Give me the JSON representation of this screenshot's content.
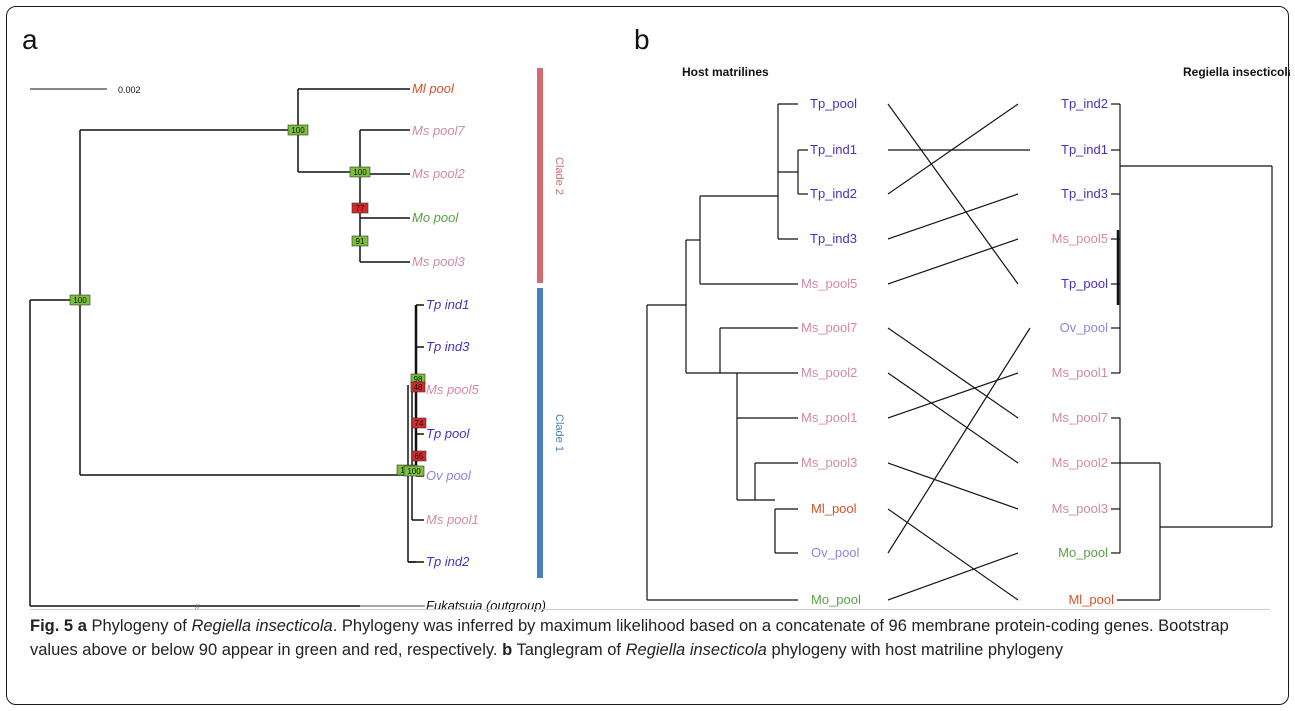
{
  "panel_a": {
    "letter": "a",
    "scale_label": "0.002",
    "tips": [
      {
        "label": "Ml pool",
        "color": "#d8522b"
      },
      {
        "label": "Ms pool7",
        "color": "#d58aa7"
      },
      {
        "label": "Ms pool2",
        "color": "#d58aa7"
      },
      {
        "label": "Mo pool",
        "color": "#5aa14a"
      },
      {
        "label": "Ms pool3",
        "color": "#d58aa7"
      },
      {
        "label": "Tp ind1",
        "color": "#4b2fbf"
      },
      {
        "label": "Tp ind3",
        "color": "#4b2fbf"
      },
      {
        "label": "Ms pool5",
        "color": "#d58aa7"
      },
      {
        "label": "Tp pool",
        "color": "#4b2fbf"
      },
      {
        "label": "Ov pool",
        "color": "#8f86d8"
      },
      {
        "label": "Ms pool1",
        "color": "#d58aa7"
      },
      {
        "label": "Tp ind2",
        "color": "#4b2fbf"
      },
      {
        "label": "Fukatsuia (outgroup)",
        "color": "#111111"
      }
    ],
    "bootstraps": [
      "100",
      "100",
      "100",
      "77",
      "91",
      "100",
      "98",
      "48",
      "74",
      "65",
      "100"
    ],
    "clades": [
      {
        "label": "Clade 2",
        "color": "#d46a6f"
      },
      {
        "label": "Clade 1",
        "color": "#4a80b5"
      }
    ]
  },
  "panel_b": {
    "letter": "b",
    "left_title": "Host matrilines",
    "right_title": "Regiella insecticola",
    "left_tips": [
      {
        "label": "Tp_pool",
        "color": "#4b2fbf"
      },
      {
        "label": "Tp_ind1",
        "color": "#4b2fbf"
      },
      {
        "label": "Tp_ind2",
        "color": "#4b2fbf"
      },
      {
        "label": "Tp_ind3",
        "color": "#4b2fbf"
      },
      {
        "label": "Ms_pool5",
        "color": "#d58aa7"
      },
      {
        "label": "Ms_pool7",
        "color": "#d58aa7"
      },
      {
        "label": "Ms_pool2",
        "color": "#d58aa7"
      },
      {
        "label": "Ms_pool1",
        "color": "#d58aa7"
      },
      {
        "label": "Ms_pool3",
        "color": "#d58aa7"
      },
      {
        "label": "Ml_pool",
        "color": "#d8522b"
      },
      {
        "label": "Ov_pool",
        "color": "#8f86d8"
      },
      {
        "label": "Mo_pool",
        "color": "#5aa14a"
      }
    ],
    "right_tips": [
      {
        "label": "Tp_ind2",
        "color": "#4b2fbf"
      },
      {
        "label": "Tp_ind1",
        "color": "#4b2fbf"
      },
      {
        "label": "Tp_ind3",
        "color": "#4b2fbf"
      },
      {
        "label": "Ms_pool5",
        "color": "#d58aa7"
      },
      {
        "label": "Tp_pool",
        "color": "#4b2fbf"
      },
      {
        "label": "Ov_pool",
        "color": "#8f86d8"
      },
      {
        "label": "Ms_pool1",
        "color": "#d58aa7"
      },
      {
        "label": "Ms_pool7",
        "color": "#d58aa7"
      },
      {
        "label": "Ms_pool2",
        "color": "#d58aa7"
      },
      {
        "label": "Ms_pool3",
        "color": "#d58aa7"
      },
      {
        "label": "Mo_pool",
        "color": "#5aa14a"
      },
      {
        "label": "Ml_pool",
        "color": "#d8522b"
      }
    ]
  },
  "caption": {
    "fig": "Fig. 5",
    "a": "a",
    "t1": " Phylogeny of ",
    "sp1": "Regiella insecticola",
    "t2": ". Phylogeny was inferred by maximum likelihood based on a concatenate of 96 membrane protein-coding genes. Bootstrap values above or below 90 appear in green and red, respectively. ",
    "b": "b",
    "t3": " Tanglegram of ",
    "sp2": "Regiella insecticola",
    "t4": " phylogeny with host matriline phylogeny"
  }
}
